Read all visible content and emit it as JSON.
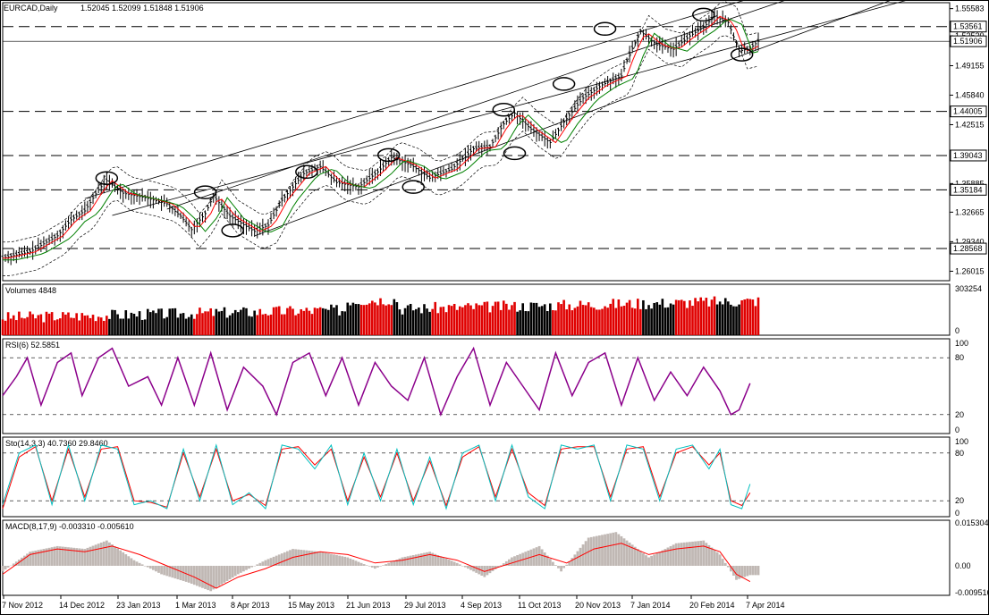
{
  "chart_data": {
    "type": "line",
    "title": "EURCAD,Daily",
    "ohlc": [
      "1.52045",
      "1.52099",
      "1.51848",
      "1.51906"
    ],
    "price_axis": {
      "ticks": [
        1.26015,
        1.2934,
        1.32665,
        1.35885,
        1.42515,
        1.4584,
        1.49155,
        1.5252,
        1.55583
      ],
      "tick_labels": [
        "1.26015",
        "1.29340",
        "1.32665",
        "1.35885",
        "1.42515",
        "1.45840",
        "1.49155",
        "1.52520",
        "1.55583"
      ],
      "range": [
        1.2495,
        1.5625
      ]
    },
    "levels": [
      {
        "value": 1.53561,
        "label": "1.53561"
      },
      {
        "value": 1.44005,
        "label": "1.44005"
      },
      {
        "value": 1.39043,
        "label": "1.39043"
      },
      {
        "value": 1.35184,
        "label": "1.35184"
      },
      {
        "value": 1.28568,
        "label": "1.28568"
      }
    ],
    "current_price": {
      "value": 1.51906,
      "label": "1.51906"
    },
    "x_axis": {
      "labels": [
        "7 Nov 2012",
        "14 Dec 2012",
        "23 Jan 2013",
        "1 Mar 2013",
        "8 Apr 2013",
        "15 May 2013",
        "21 Jun 2013",
        "29 Jul 2013",
        "4 Sep 2013",
        "11 Oct 2013",
        "20 Nov 2013",
        "7 Jan 2014",
        "20 Feb 2014",
        "7 Apr 2014"
      ]
    },
    "price_path": [
      [
        0,
        1.275
      ],
      [
        10,
        1.282
      ],
      [
        20,
        1.3
      ],
      [
        25,
        1.318
      ],
      [
        30,
        1.328
      ],
      [
        35,
        1.352
      ],
      [
        38,
        1.362
      ],
      [
        44,
        1.348
      ],
      [
        52,
        1.343
      ],
      [
        60,
        1.336
      ],
      [
        65,
        1.322
      ],
      [
        69,
        1.307
      ],
      [
        74,
        1.325
      ],
      [
        77,
        1.345
      ],
      [
        83,
        1.322
      ],
      [
        92,
        1.305
      ],
      [
        97,
        1.312
      ],
      [
        102,
        1.34
      ],
      [
        110,
        1.37
      ],
      [
        116,
        1.378
      ],
      [
        122,
        1.36
      ],
      [
        130,
        1.355
      ],
      [
        137,
        1.372
      ],
      [
        142,
        1.388
      ],
      [
        149,
        1.38
      ],
      [
        156,
        1.365
      ],
      [
        164,
        1.375
      ],
      [
        172,
        1.398
      ],
      [
        178,
        1.4
      ],
      [
        183,
        1.426
      ],
      [
        187,
        1.438
      ],
      [
        193,
        1.42
      ],
      [
        200,
        1.405
      ],
      [
        205,
        1.428
      ],
      [
        212,
        1.455
      ],
      [
        219,
        1.47
      ],
      [
        226,
        1.48
      ],
      [
        229,
        1.505
      ],
      [
        233,
        1.53
      ],
      [
        239,
        1.515
      ],
      [
        245,
        1.51
      ],
      [
        251,
        1.525
      ],
      [
        256,
        1.535
      ],
      [
        260,
        1.547
      ],
      [
        265,
        1.54
      ],
      [
        269,
        1.508
      ],
      [
        273,
        1.511
      ],
      [
        276,
        1.519
      ]
    ],
    "volumes": {
      "label": "Volumes 4848",
      "ticks": [
        {
          "value": 0,
          "label": "0"
        },
        {
          "value": 303254,
          "label": "303254"
        }
      ],
      "range": [
        0,
        303254
      ]
    },
    "rsi": {
      "label": "RSI(6) 52.5851",
      "ticks": [
        {
          "value": 100,
          "label": "100"
        },
        {
          "value": 80,
          "label": "80"
        },
        {
          "value": 20,
          "label": "20"
        },
        {
          "value": 0,
          "label": "0"
        }
      ],
      "levels": [
        80,
        20
      ],
      "path": [
        [
          0,
          40
        ],
        [
          5,
          60
        ],
        [
          9,
          80
        ],
        [
          14,
          30
        ],
        [
          20,
          75
        ],
        [
          25,
          85
        ],
        [
          29,
          40
        ],
        [
          35,
          80
        ],
        [
          40,
          90
        ],
        [
          46,
          50
        ],
        [
          53,
          60
        ],
        [
          58,
          30
        ],
        [
          64,
          80
        ],
        [
          70,
          30
        ],
        [
          76,
          85
        ],
        [
          82,
          25
        ],
        [
          88,
          70
        ],
        [
          95,
          50
        ],
        [
          100,
          20
        ],
        [
          106,
          75
        ],
        [
          112,
          85
        ],
        [
          118,
          40
        ],
        [
          124,
          80
        ],
        [
          130,
          30
        ],
        [
          136,
          75
        ],
        [
          142,
          50
        ],
        [
          148,
          35
        ],
        [
          154,
          80
        ],
        [
          160,
          20
        ],
        [
          166,
          60
        ],
        [
          172,
          90
        ],
        [
          178,
          30
        ],
        [
          184,
          75
        ],
        [
          190,
          50
        ],
        [
          196,
          25
        ],
        [
          202,
          85
        ],
        [
          208,
          40
        ],
        [
          214,
          75
        ],
        [
          220,
          85
        ],
        [
          226,
          30
        ],
        [
          232,
          80
        ],
        [
          238,
          35
        ],
        [
          244,
          65
        ],
        [
          250,
          40
        ],
        [
          256,
          70
        ],
        [
          262,
          45
        ],
        [
          266,
          20
        ],
        [
          269,
          25
        ],
        [
          273,
          53
        ]
      ]
    },
    "stochastic": {
      "label": "Sto(14,3,3) 40.7360 29.8460",
      "ticks": [
        {
          "value": 100,
          "label": "100"
        },
        {
          "value": 80,
          "label": "80"
        },
        {
          "value": 20,
          "label": "20"
        },
        {
          "value": 0,
          "label": "0"
        }
      ],
      "levels": [
        80,
        20
      ],
      "path": [
        [
          0,
          15
        ],
        [
          6,
          80
        ],
        [
          12,
          90
        ],
        [
          18,
          15
        ],
        [
          24,
          90
        ],
        [
          30,
          20
        ],
        [
          36,
          90
        ],
        [
          42,
          85
        ],
        [
          48,
          15
        ],
        [
          54,
          20
        ],
        [
          60,
          10
        ],
        [
          66,
          85
        ],
        [
          72,
          20
        ],
        [
          78,
          90
        ],
        [
          84,
          15
        ],
        [
          90,
          30
        ],
        [
          96,
          10
        ],
        [
          102,
          90
        ],
        [
          108,
          85
        ],
        [
          114,
          60
        ],
        [
          120,
          90
        ],
        [
          126,
          15
        ],
        [
          132,
          80
        ],
        [
          138,
          20
        ],
        [
          144,
          85
        ],
        [
          150,
          15
        ],
        [
          156,
          75
        ],
        [
          162,
          10
        ],
        [
          168,
          80
        ],
        [
          174,
          90
        ],
        [
          180,
          20
        ],
        [
          186,
          90
        ],
        [
          192,
          25
        ],
        [
          198,
          10
        ],
        [
          204,
          90
        ],
        [
          210,
          85
        ],
        [
          216,
          90
        ],
        [
          222,
          20
        ],
        [
          228,
          90
        ],
        [
          234,
          85
        ],
        [
          240,
          20
        ],
        [
          246,
          85
        ],
        [
          252,
          90
        ],
        [
          258,
          60
        ],
        [
          262,
          85
        ],
        [
          266,
          15
        ],
        [
          270,
          10
        ],
        [
          273,
          41
        ]
      ],
      "signal_path": [
        [
          0,
          10
        ],
        [
          6,
          75
        ],
        [
          12,
          88
        ],
        [
          18,
          20
        ],
        [
          24,
          85
        ],
        [
          30,
          25
        ],
        [
          36,
          85
        ],
        [
          42,
          88
        ],
        [
          48,
          20
        ],
        [
          54,
          18
        ],
        [
          60,
          12
        ],
        [
          66,
          80
        ],
        [
          72,
          25
        ],
        [
          78,
          85
        ],
        [
          84,
          20
        ],
        [
          90,
          28
        ],
        [
          96,
          14
        ],
        [
          102,
          85
        ],
        [
          108,
          88
        ],
        [
          114,
          65
        ],
        [
          120,
          85
        ],
        [
          126,
          20
        ],
        [
          132,
          75
        ],
        [
          138,
          25
        ],
        [
          144,
          80
        ],
        [
          150,
          20
        ],
        [
          156,
          70
        ],
        [
          162,
          14
        ],
        [
          168,
          75
        ],
        [
          174,
          88
        ],
        [
          180,
          25
        ],
        [
          186,
          85
        ],
        [
          192,
          30
        ],
        [
          198,
          14
        ],
        [
          204,
          85
        ],
        [
          210,
          88
        ],
        [
          216,
          88
        ],
        [
          222,
          25
        ],
        [
          228,
          85
        ],
        [
          234,
          88
        ],
        [
          240,
          25
        ],
        [
          246,
          80
        ],
        [
          252,
          88
        ],
        [
          258,
          65
        ],
        [
          262,
          80
        ],
        [
          266,
          20
        ],
        [
          270,
          14
        ],
        [
          273,
          30
        ]
      ]
    },
    "macd": {
      "label": "MACD(8,17,9) -0.003310 -0.005610",
      "ticks": [
        {
          "value": 0.015304,
          "label": "0.015304"
        },
        {
          "value": 0,
          "label": "0.00"
        },
        {
          "value": -0.009516,
          "label": "-0.009516"
        }
      ],
      "range": [
        -0.0105,
        0.0162
      ],
      "signal_path": [
        [
          0,
          -0.003
        ],
        [
          10,
          0.004
        ],
        [
          20,
          0.006
        ],
        [
          30,
          0.005
        ],
        [
          40,
          0.007
        ],
        [
          50,
          0.004
        ],
        [
          60,
          0.0
        ],
        [
          70,
          -0.004
        ],
        [
          78,
          -0.008
        ],
        [
          86,
          -0.004
        ],
        [
          96,
          -0.001
        ],
        [
          106,
          0.003
        ],
        [
          116,
          0.005
        ],
        [
          126,
          0.004
        ],
        [
          136,
          0.001
        ],
        [
          146,
          0.002
        ],
        [
          156,
          0.004
        ],
        [
          166,
          0.002
        ],
        [
          176,
          -0.002
        ],
        [
          186,
          0.001
        ],
        [
          196,
          0.004
        ],
        [
          206,
          0.001
        ],
        [
          216,
          0.006
        ],
        [
          226,
          0.008
        ],
        [
          236,
          0.004
        ],
        [
          246,
          0.006
        ],
        [
          256,
          0.007
        ],
        [
          262,
          0.005
        ],
        [
          268,
          -0.003
        ],
        [
          273,
          -0.0056
        ]
      ],
      "hist_path": [
        [
          0,
          -0.002
        ],
        [
          10,
          0.005
        ],
        [
          20,
          0.007
        ],
        [
          30,
          0.006
        ],
        [
          38,
          0.009
        ],
        [
          48,
          0.002
        ],
        [
          58,
          -0.003
        ],
        [
          68,
          -0.006
        ],
        [
          76,
          -0.009
        ],
        [
          86,
          -0.003
        ],
        [
          96,
          0.002
        ],
        [
          106,
          0.006
        ],
        [
          116,
          0.005
        ],
        [
          126,
          0.003
        ],
        [
          136,
          -0.001
        ],
        [
          146,
          0.003
        ],
        [
          156,
          0.005
        ],
        [
          166,
          0.001
        ],
        [
          176,
          -0.004
        ],
        [
          186,
          0.003
        ],
        [
          196,
          0.007
        ],
        [
          204,
          -0.002
        ],
        [
          214,
          0.01
        ],
        [
          224,
          0.012
        ],
        [
          236,
          0.003
        ],
        [
          246,
          0.008
        ],
        [
          256,
          0.009
        ],
        [
          262,
          0.004
        ],
        [
          268,
          -0.005
        ],
        [
          273,
          -0.0033
        ]
      ]
    },
    "colors": {
      "grid": "#000000",
      "rsi_line": "#8b008b",
      "sto_main": "#00bfbf",
      "sto_signal": "#ff0000",
      "macd_signal": "#ff0000",
      "macd_hist": "#c0b8b4",
      "vol_up": "#000000",
      "vol_down": "#e00000",
      "ma_fast": "#ff0000",
      "ma_slow": "#008000",
      "price": "#000000"
    }
  }
}
